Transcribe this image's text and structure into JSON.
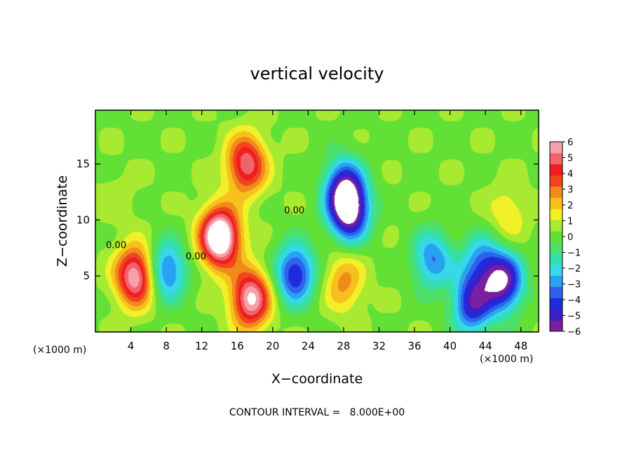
{
  "chart_data": {
    "type": "heatmap",
    "title": "vertical velocity",
    "xlabel": "X−coordinate",
    "ylabel": "Z−coordinate",
    "x_unit_left": "(×1000 m)",
    "x_unit_right": "(×1000 m)",
    "xlim": [
      0,
      50
    ],
    "ylim": [
      0,
      19.8
    ],
    "xticks": [
      4,
      8,
      12,
      16,
      20,
      24,
      28,
      32,
      36,
      40,
      44,
      48
    ],
    "xtick_labels": [
      "4",
      "8",
      "12",
      "16",
      "20",
      "24",
      "28",
      "32",
      "36",
      "40",
      "44",
      "48"
    ],
    "yticks": [
      5,
      10,
      15
    ],
    "ytick_labels": [
      "5",
      "10",
      "15"
    ],
    "colorbar": {
      "min": -6,
      "max": 6,
      "tick_values": [
        6,
        5,
        4,
        3,
        2,
        1,
        0,
        -1,
        -2,
        -3,
        -4,
        -5,
        -6
      ],
      "tick_labels": [
        "6",
        "5",
        "4",
        "3",
        "2",
        "1",
        "0",
        "−1",
        "−2",
        "−3",
        "−4",
        "−5",
        "−6"
      ],
      "colors": [
        "#7a1fa2",
        "#3b1fc8",
        "#1f2bdc",
        "#2f62ea",
        "#2aa2f2",
        "#37d8e8",
        "#33e0a8",
        "#4fe06a",
        "#62e036",
        "#a8ea32",
        "#f0f028",
        "#f8c01e",
        "#f08a1a",
        "#f0461e",
        "#f01e1e",
        "#f0646e",
        "#f8a0a8"
      ]
    },
    "contour_labels": [
      {
        "text": "0.00",
        "x": 1.2,
        "z": 7.5
      },
      {
        "text": "0.00",
        "x": 10.2,
        "z": 6.5
      },
      {
        "text": "0.00",
        "x": 21.3,
        "z": 10.6
      }
    ],
    "features": [
      {
        "x": 28,
        "z": 13,
        "w": -4.5
      },
      {
        "x": 28.6,
        "z": 10.8,
        "w": -6.5
      },
      {
        "x": 22.5,
        "z": 5.2,
        "w": -5
      },
      {
        "x": 8,
        "z": 5.5,
        "w": -4
      },
      {
        "x": 42.5,
        "z": 2.5,
        "w": -5
      },
      {
        "x": 46,
        "z": 4.5,
        "w": -6
      },
      {
        "x": 43.5,
        "z": 6.2,
        "w": -3
      },
      {
        "x": 38,
        "z": 6.5,
        "w": -3.5
      },
      {
        "x": 4.5,
        "z": 5,
        "w": 6
      },
      {
        "x": 14,
        "z": 8.5,
        "w": 8
      },
      {
        "x": 17,
        "z": 15,
        "w": 5
      },
      {
        "x": 17.5,
        "z": 3,
        "w": 6
      },
      {
        "x": 28,
        "z": 4.5,
        "w": 2.5
      },
      {
        "x": 46.5,
        "z": 10.5,
        "w": 1.5
      },
      {
        "x": 2.5,
        "z": 12,
        "w": 0.5
      }
    ],
    "footer": "CONTOUR INTERVAL =   8.000E+00"
  }
}
